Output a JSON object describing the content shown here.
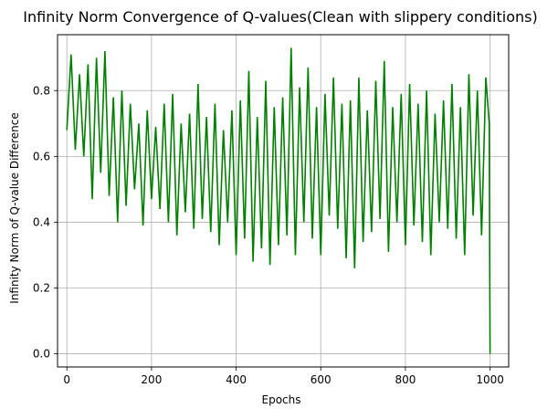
{
  "chart_data": {
    "type": "line",
    "title": "Infinity Norm Convergence of Q-values(Clean with slippery conditions)",
    "xlabel": "Epochs",
    "ylabel": "Infinity Norm of Q-value Difference",
    "xlim": [
      -22,
      1044
    ],
    "ylim": [
      -0.04,
      0.97
    ],
    "xticks": [
      0,
      200,
      400,
      600,
      800,
      1000
    ],
    "yticks": [
      0.0,
      0.2,
      0.4,
      0.6,
      0.8
    ],
    "xtick_labels": [
      "0",
      "200",
      "400",
      "600",
      "800",
      "1000"
    ],
    "ytick_labels": [
      "0.0",
      "0.2",
      "0.4",
      "0.6",
      "0.8"
    ],
    "grid": true,
    "legend": "none",
    "series": [
      {
        "color": "#008000",
        "x": [
          0,
          10,
          20,
          30,
          40,
          50,
          60,
          70,
          80,
          90,
          100,
          110,
          120,
          130,
          140,
          150,
          160,
          170,
          180,
          190,
          200,
          210,
          220,
          230,
          240,
          250,
          260,
          270,
          280,
          290,
          300,
          310,
          320,
          330,
          340,
          350,
          360,
          370,
          380,
          390,
          400,
          410,
          420,
          430,
          440,
          450,
          460,
          470,
          480,
          490,
          500,
          510,
          520,
          530,
          540,
          550,
          560,
          570,
          580,
          590,
          600,
          610,
          620,
          630,
          640,
          650,
          660,
          670,
          680,
          690,
          700,
          710,
          720,
          730,
          740,
          750,
          760,
          770,
          780,
          790,
          800,
          810,
          820,
          830,
          840,
          850,
          860,
          870,
          880,
          890,
          900,
          910,
          920,
          930,
          940,
          950,
          960,
          970,
          980,
          990,
          998,
          1000
        ],
        "y": [
          0.68,
          0.91,
          0.62,
          0.85,
          0.6,
          0.88,
          0.47,
          0.9,
          0.55,
          0.92,
          0.48,
          0.78,
          0.4,
          0.8,
          0.45,
          0.76,
          0.5,
          0.7,
          0.39,
          0.74,
          0.47,
          0.69,
          0.44,
          0.76,
          0.4,
          0.79,
          0.36,
          0.7,
          0.43,
          0.73,
          0.38,
          0.82,
          0.41,
          0.72,
          0.37,
          0.76,
          0.33,
          0.68,
          0.4,
          0.74,
          0.3,
          0.77,
          0.35,
          0.86,
          0.28,
          0.72,
          0.32,
          0.83,
          0.27,
          0.75,
          0.33,
          0.78,
          0.36,
          0.93,
          0.3,
          0.81,
          0.4,
          0.87,
          0.35,
          0.75,
          0.3,
          0.79,
          0.42,
          0.84,
          0.38,
          0.76,
          0.29,
          0.77,
          0.26,
          0.84,
          0.34,
          0.74,
          0.37,
          0.83,
          0.41,
          0.89,
          0.31,
          0.75,
          0.4,
          0.79,
          0.33,
          0.82,
          0.39,
          0.76,
          0.34,
          0.8,
          0.3,
          0.73,
          0.4,
          0.77,
          0.38,
          0.82,
          0.35,
          0.75,
          0.3,
          0.85,
          0.42,
          0.8,
          0.36,
          0.84,
          0.7,
          0.0
        ]
      }
    ]
  }
}
